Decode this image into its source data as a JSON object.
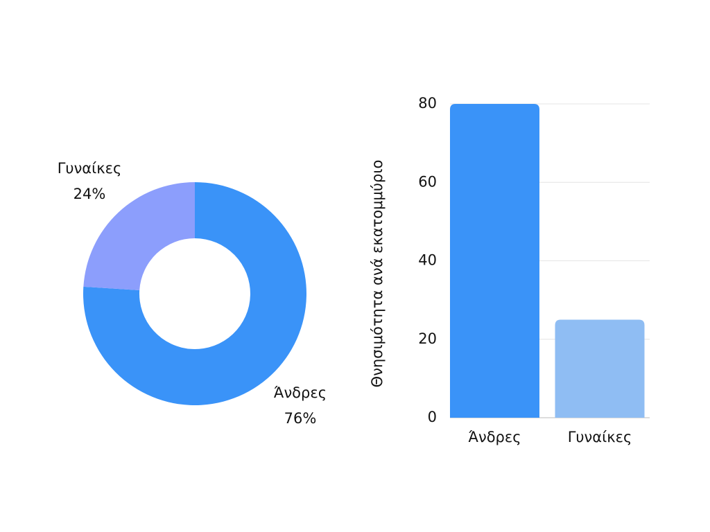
{
  "chart_data": [
    {
      "type": "pie",
      "categories": [
        "Άνδρες",
        "Γυναίκες"
      ],
      "values": [
        76,
        24
      ],
      "value_labels": [
        "76%",
        "24%"
      ],
      "colors": [
        "#3a93f8",
        "#8c9efc"
      ]
    },
    {
      "type": "bar",
      "ylabel": "Θνησιμότητα ανά εκατομμύριο",
      "categories": [
        "Άνδρες",
        "Γυναίκες"
      ],
      "values": [
        80,
        25
      ],
      "colors": [
        "#3a93f8",
        "#8fbdf3"
      ],
      "ylim": [
        0,
        80
      ],
      "yticks": [
        0,
        20,
        40,
        60,
        80
      ],
      "grid": true
    }
  ]
}
